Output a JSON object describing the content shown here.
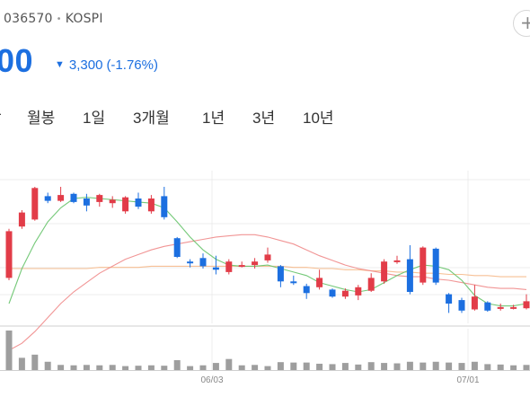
{
  "stock": {
    "code": "036570",
    "market": "KOSPI",
    "price_visible": "00",
    "change_arrow": "▼",
    "change_amount": "3,300",
    "change_pct": "(-1.76%)"
  },
  "header": {
    "add_label": "+"
  },
  "tabs": [
    {
      "label": "-"
    },
    {
      "label": "월봉"
    },
    {
      "label": "1일"
    },
    {
      "label": "3개월"
    },
    {
      "label": "1년"
    },
    {
      "label": "3년"
    },
    {
      "label": "10년"
    }
  ],
  "colors": {
    "up": "#e23c48",
    "down": "#1c6fe0",
    "volume": "#9e9e9e",
    "ma_short": "#66c36a",
    "ma_mid": "#f08a8a",
    "ma_long": "#f6b98a"
  },
  "chart_data": {
    "type": "candlestick",
    "x_tick_labels": [
      "06/03",
      "07/01"
    ],
    "grid": true,
    "candles": [
      {
        "o": 0.22,
        "c": 0.62,
        "h": 0.64,
        "l": 0.2
      },
      {
        "o": 0.66,
        "c": 0.78,
        "h": 0.8,
        "l": 0.64
      },
      {
        "o": 0.72,
        "c": 0.99,
        "h": 1.0,
        "l": 0.71
      },
      {
        "o": 0.92,
        "c": 0.88,
        "h": 0.95,
        "l": 0.86
      },
      {
        "o": 0.88,
        "c": 0.93,
        "h": 1.0,
        "l": 0.87
      },
      {
        "o": 0.94,
        "c": 0.87,
        "h": 0.95,
        "l": 0.86
      },
      {
        "o": 0.9,
        "c": 0.84,
        "h": 0.94,
        "l": 0.79
      },
      {
        "o": 0.87,
        "c": 0.93,
        "h": 0.94,
        "l": 0.83
      },
      {
        "o": 0.86,
        "c": 0.89,
        "h": 0.92,
        "l": 0.82
      },
      {
        "o": 0.79,
        "c": 0.91,
        "h": 0.92,
        "l": 0.77
      },
      {
        "o": 0.9,
        "c": 0.83,
        "h": 0.95,
        "l": 0.81
      },
      {
        "o": 0.79,
        "c": 0.9,
        "h": 0.93,
        "l": 0.77
      },
      {
        "o": 0.92,
        "c": 0.74,
        "h": 1.0,
        "l": 0.72
      },
      {
        "o": 0.56,
        "c": 0.4,
        "h": 0.57,
        "l": 0.39
      },
      {
        "o": 0.36,
        "c": 0.35,
        "h": 0.38,
        "l": 0.31
      },
      {
        "o": 0.39,
        "c": 0.32,
        "h": 0.43,
        "l": 0.3
      },
      {
        "o": 0.31,
        "c": 0.29,
        "h": 0.41,
        "l": 0.25
      },
      {
        "o": 0.27,
        "c": 0.36,
        "h": 0.38,
        "l": 0.25
      },
      {
        "o": 0.32,
        "c": 0.33,
        "h": 0.36,
        "l": 0.31
      },
      {
        "o": 0.33,
        "c": 0.36,
        "h": 0.39,
        "l": 0.3
      },
      {
        "o": 0.37,
        "c": 0.42,
        "h": 0.48,
        "l": 0.35
      },
      {
        "o": 0.32,
        "c": 0.19,
        "h": 0.33,
        "l": 0.14
      },
      {
        "o": 0.19,
        "c": 0.18,
        "h": 0.24,
        "l": 0.16
      },
      {
        "o": 0.15,
        "c": 0.09,
        "h": 0.17,
        "l": 0.04
      },
      {
        "o": 0.14,
        "c": 0.22,
        "h": 0.29,
        "l": 0.12
      },
      {
        "o": 0.12,
        "c": 0.06,
        "h": 0.13,
        "l": 0.05
      },
      {
        "o": 0.06,
        "c": 0.11,
        "h": 0.13,
        "l": 0.04
      },
      {
        "o": 0.07,
        "c": 0.14,
        "h": 0.16,
        "l": 0.03
      },
      {
        "o": 0.11,
        "c": 0.22,
        "h": 0.26,
        "l": 0.1
      },
      {
        "o": 0.19,
        "c": 0.36,
        "h": 0.38,
        "l": 0.17
      },
      {
        "o": 0.36,
        "c": 0.37,
        "h": 0.41,
        "l": 0.34
      },
      {
        "o": 0.38,
        "c": 0.1,
        "h": 0.5,
        "l": 0.08
      },
      {
        "o": 0.18,
        "c": 0.48,
        "h": 0.49,
        "l": 0.16
      },
      {
        "o": 0.47,
        "c": 0.18,
        "h": 0.48,
        "l": 0.16
      },
      {
        "o": 0.08,
        "c": 0.0,
        "h": 0.09,
        "l": -0.08
      },
      {
        "o": 0.03,
        "c": -0.06,
        "h": 0.05,
        "l": -0.08
      },
      {
        "o": -0.05,
        "c": 0.06,
        "h": 0.16,
        "l": -0.06
      },
      {
        "o": 0.01,
        "c": -0.06,
        "h": 0.02,
        "l": -0.07
      },
      {
        "o": -0.03,
        "c": -0.03,
        "h": 0.0,
        "l": -0.06
      },
      {
        "o": -0.04,
        "c": -0.03,
        "h": -0.01,
        "l": -0.05
      },
      {
        "o": -0.04,
        "c": 0.02,
        "h": 0.08,
        "l": -0.05
      }
    ],
    "volume": [
      1.0,
      0.31,
      0.39,
      0.21,
      0.13,
      0.12,
      0.13,
      0.12,
      0.13,
      0.1,
      0.11,
      0.12,
      0.11,
      0.25,
      0.1,
      0.12,
      0.18,
      0.28,
      0.12,
      0.13,
      0.1,
      0.2,
      0.19,
      0.19,
      0.16,
      0.15,
      0.18,
      0.14,
      0.2,
      0.18,
      0.17,
      0.21,
      0.19,
      0.21,
      0.19,
      0.18,
      0.21,
      0.15,
      0.14,
      0.12,
      0.13
    ],
    "ma5": [
      0.0,
      0.3,
      0.52,
      0.7,
      0.82,
      0.9,
      0.91,
      0.9,
      0.89,
      0.88,
      0.87,
      0.86,
      0.82,
      0.7,
      0.57,
      0.46,
      0.38,
      0.33,
      0.32,
      0.32,
      0.33,
      0.3,
      0.27,
      0.24,
      0.18,
      0.15,
      0.12,
      0.1,
      0.12,
      0.18,
      0.24,
      0.29,
      0.33,
      0.32,
      0.29,
      0.2,
      0.07,
      0.0,
      -0.02,
      -0.02,
      0.0
    ],
    "ma20": [
      -0.4,
      -0.34,
      -0.24,
      -0.12,
      0.0,
      0.1,
      0.18,
      0.26,
      0.32,
      0.38,
      0.42,
      0.46,
      0.49,
      0.51,
      0.53,
      0.55,
      0.57,
      0.58,
      0.59,
      0.59,
      0.57,
      0.54,
      0.51,
      0.46,
      0.41,
      0.37,
      0.33,
      0.3,
      0.28,
      0.26,
      0.24,
      0.23,
      0.23,
      0.21,
      0.2,
      0.18,
      0.16,
      0.14,
      0.13,
      0.13,
      0.12
    ],
    "ma60": [
      0.3,
      0.3,
      0.3,
      0.3,
      0.3,
      0.3,
      0.3,
      0.31,
      0.31,
      0.31,
      0.31,
      0.32,
      0.32,
      0.32,
      0.32,
      0.32,
      0.32,
      0.32,
      0.32,
      0.32,
      0.32,
      0.32,
      0.31,
      0.31,
      0.3,
      0.3,
      0.29,
      0.29,
      0.28,
      0.28,
      0.27,
      0.27,
      0.26,
      0.26,
      0.25,
      0.25,
      0.24,
      0.24,
      0.23,
      0.23,
      0.23
    ]
  }
}
